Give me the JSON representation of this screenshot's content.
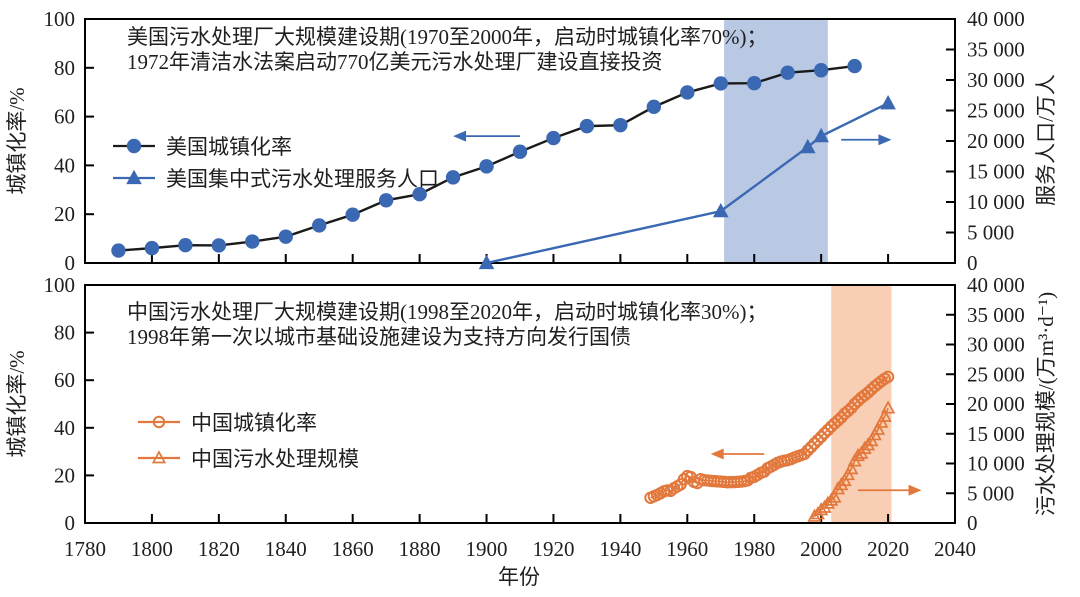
{
  "figure": {
    "xlabel": "年份",
    "x_range": [
      1780,
      2040
    ],
    "x_ticks": [
      1780,
      1800,
      1820,
      1840,
      1860,
      1880,
      1900,
      1920,
      1940,
      1960,
      1980,
      2000,
      2020,
      2040
    ],
    "background": "#ffffff"
  },
  "colors": {
    "text": "#1f1f1f",
    "frame": "#000000",
    "us_accent": "#3a68b2",
    "us_line": "#1a1a1a",
    "us_band": "#b9c8e3",
    "cn_accent": "#e2783c",
    "cn_band": "#f8cfb4"
  },
  "chart_data": [
    {
      "type": "line",
      "region": "美国",
      "annotation_line1": "美国污水处理厂大规模建设期(1970至2000年，启动时城镇化率70%)；",
      "annotation_line2": "1972年清洁水法案启动770亿美元污水处理厂建设直接投资",
      "ylabel_left": "城镇化率/%",
      "ylabel_right": "服务人口/万人",
      "ylim_left": [
        0,
        100
      ],
      "ylim_right": [
        0,
        40000
      ],
      "y_left_ticks": [
        0,
        20,
        40,
        60,
        80,
        100
      ],
      "y_right_ticks": [
        "0",
        "5 000",
        "10 000",
        "15 000",
        "20 000",
        "25 000",
        "30 000",
        "35 000",
        "40 000"
      ],
      "shaded_band": {
        "year_start": 1971,
        "year_end": 2002,
        "color": "#b9c8e3"
      },
      "series": [
        {
          "name": "美国城镇化率",
          "axis": "left",
          "marker": "circle-filled",
          "line_color": "#1a1a1a",
          "marker_color": "#3a68b2",
          "x": [
            1790,
            1800,
            1810,
            1820,
            1830,
            1840,
            1850,
            1860,
            1870,
            1880,
            1890,
            1900,
            1910,
            1920,
            1930,
            1940,
            1950,
            1960,
            1970,
            1980,
            1990,
            2000,
            2010
          ],
          "values": [
            5.1,
            6.1,
            7.3,
            7.2,
            8.8,
            10.8,
            15.4,
            19.8,
            25.7,
            28.2,
            35.1,
            39.6,
            45.6,
            51.2,
            56.1,
            56.5,
            64.0,
            69.9,
            73.6,
            73.7,
            78.0,
            79.0,
            80.7
          ]
        },
        {
          "name": "美国集中式污水处理服务人口",
          "axis": "right",
          "marker": "triangle-filled",
          "line_color": "#3a68b2",
          "marker_color": "#3a68b2",
          "x": [
            1900,
            1970,
            1996,
            2000,
            2020
          ],
          "values": [
            0,
            8500,
            19000,
            20800,
            26200
          ]
        }
      ],
      "arrows": [
        {
          "direction": "left",
          "axis": "left",
          "value": 52,
          "year_from": 1910,
          "year_to": 1890,
          "color": "#3a68b2"
        },
        {
          "direction": "right",
          "axis": "right",
          "value": 20200,
          "year_from": 2006,
          "year_to": 2021,
          "color": "#3a68b2"
        }
      ]
    },
    {
      "type": "line",
      "region": "中国",
      "annotation_line1": "中国污水处理厂大规模建设期(1998至2020年，启动时城镇化率30%)；",
      "annotation_line2": "1998年第一次以城市基础设施建设为支持方向发行国债",
      "ylabel_left": "城镇化率/%",
      "ylabel_right": "污水处理规模/(万m³·d⁻¹)",
      "ylim_left": [
        0,
        100
      ],
      "ylim_right": [
        0,
        40000
      ],
      "y_left_ticks": [
        0,
        20,
        40,
        60,
        80,
        100
      ],
      "y_right_ticks": [
        "0",
        "5 000",
        "10 000",
        "15 000",
        "20 000",
        "25 000",
        "30 000",
        "35 000",
        "40 000"
      ],
      "shaded_band": {
        "year_start": 2003,
        "year_end": 2021,
        "color": "#f8cfb4"
      },
      "series": [
        {
          "name": "中国城镇化率",
          "axis": "left",
          "marker": "circle-open",
          "line_color": "#e2783c",
          "marker_color": "#e2783c",
          "x_start": 1949,
          "x_step": 1,
          "values": [
            10.6,
            11.2,
            11.8,
            12.5,
            13.3,
            13.7,
            13.5,
            14.6,
            15.4,
            16.2,
            18.4,
            19.7,
            19.3,
            17.3,
            16.8,
            18.4,
            18.0,
            17.9,
            17.7,
            17.6,
            17.5,
            17.4,
            17.3,
            17.1,
            17.2,
            17.2,
            17.3,
            17.4,
            17.6,
            17.9,
            19.0,
            19.4,
            20.2,
            21.1,
            21.6,
            23.0,
            23.7,
            24.5,
            25.3,
            25.8,
            26.2,
            26.4,
            26.9,
            27.5,
            28.0,
            28.5,
            29.0,
            30.5,
            31.9,
            33.4,
            34.8,
            36.2,
            37.7,
            39.1,
            40.5,
            41.8,
            43.0,
            44.3,
            45.9,
            47.0,
            48.3,
            50.0,
            51.3,
            52.6,
            53.7,
            54.8,
            56.1,
            57.4,
            58.5,
            59.6,
            60.6,
            61.4
          ]
        },
        {
          "name": "中国污水处理规模",
          "axis": "right",
          "marker": "triangle-open",
          "line_color": "#e2783c",
          "marker_color": "#e2783c",
          "x_start": 1998,
          "x_step": 1,
          "values": [
            1100,
            1500,
            2200,
            2600,
            3300,
            3800,
            4300,
            5700,
            6400,
            7100,
            8100,
            9100,
            10400,
            11300,
            11700,
            12500,
            13100,
            13800,
            14800,
            15700,
            16900,
            17900,
            19300
          ]
        }
      ],
      "arrows": [
        {
          "direction": "left",
          "axis": "left",
          "value": 29,
          "year_from": 1983,
          "year_to": 1967,
          "color": "#e2783c"
        },
        {
          "direction": "right",
          "axis": "right",
          "value": 5500,
          "year_from": 2011,
          "year_to": 2030,
          "color": "#e2783c"
        }
      ]
    }
  ]
}
